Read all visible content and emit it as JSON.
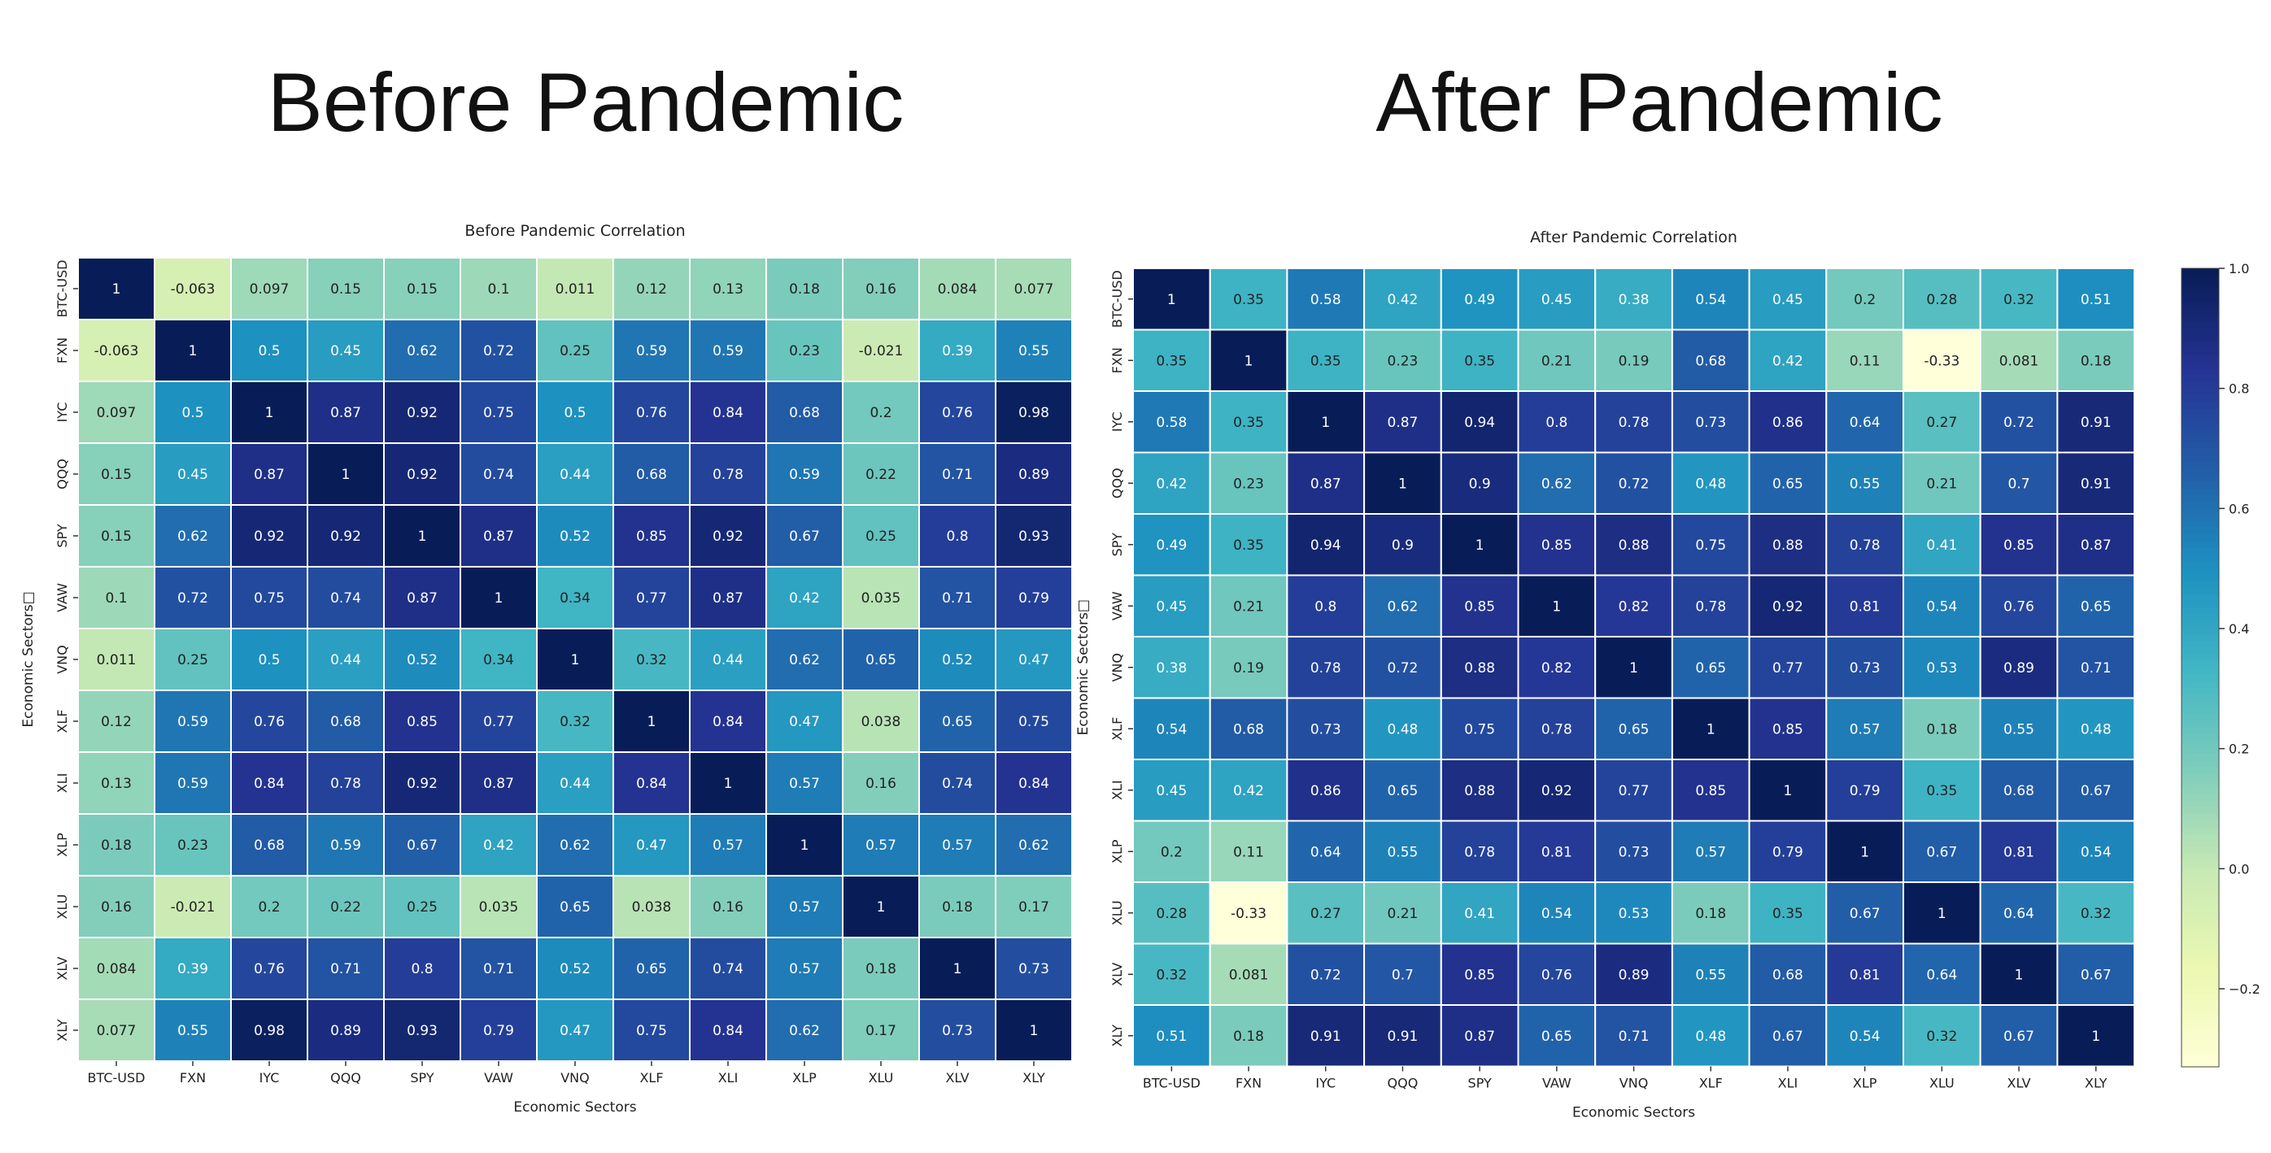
{
  "page": {
    "left_title": "Before Pandemic",
    "right_title": "After Pandemic"
  },
  "chart_data": [
    {
      "type": "heatmap",
      "title": "Before Pandemic Correlation",
      "xlabel": "Economic Sectors",
      "ylabel": "Economic Sectors□",
      "labels": [
        "BTC-USD",
        "FXN",
        "IYC",
        "QQQ",
        "SPY",
        "VAW",
        "VNQ",
        "XLF",
        "XLI",
        "XLP",
        "XLU",
        "XLV",
        "XLY"
      ],
      "matrix": [
        [
          "1",
          "-0.063",
          "0.097",
          "0.15",
          "0.15",
          "0.1",
          "0.011",
          "0.12",
          "0.13",
          "0.18",
          "0.16",
          "0.084",
          "0.077"
        ],
        [
          "-0.063",
          "1",
          "0.5",
          "0.45",
          "0.62",
          "0.72",
          "0.25",
          "0.59",
          "0.59",
          "0.23",
          "-0.021",
          "0.39",
          "0.55"
        ],
        [
          "0.097",
          "0.5",
          "1",
          "0.87",
          "0.92",
          "0.75",
          "0.5",
          "0.76",
          "0.84",
          "0.68",
          "0.2",
          "0.76",
          "0.98"
        ],
        [
          "0.15",
          "0.45",
          "0.87",
          "1",
          "0.92",
          "0.74",
          "0.44",
          "0.68",
          "0.78",
          "0.59",
          "0.22",
          "0.71",
          "0.89"
        ],
        [
          "0.15",
          "0.62",
          "0.92",
          "0.92",
          "1",
          "0.87",
          "0.52",
          "0.85",
          "0.92",
          "0.67",
          "0.25",
          "0.8",
          "0.93"
        ],
        [
          "0.1",
          "0.72",
          "0.75",
          "0.74",
          "0.87",
          "1",
          "0.34",
          "0.77",
          "0.87",
          "0.42",
          "0.035",
          "0.71",
          "0.79"
        ],
        [
          "0.011",
          "0.25",
          "0.5",
          "0.44",
          "0.52",
          "0.34",
          "1",
          "0.32",
          "0.44",
          "0.62",
          "0.65",
          "0.52",
          "0.47"
        ],
        [
          "0.12",
          "0.59",
          "0.76",
          "0.68",
          "0.85",
          "0.77",
          "0.32",
          "1",
          "0.84",
          "0.47",
          "0.038",
          "0.65",
          "0.75"
        ],
        [
          "0.13",
          "0.59",
          "0.84",
          "0.78",
          "0.92",
          "0.87",
          "0.44",
          "0.84",
          "1",
          "0.57",
          "0.16",
          "0.74",
          "0.84"
        ],
        [
          "0.18",
          "0.23",
          "0.68",
          "0.59",
          "0.67",
          "0.42",
          "0.62",
          "0.47",
          "0.57",
          "1",
          "0.57",
          "0.57",
          "0.62"
        ],
        [
          "0.16",
          "-0.021",
          "0.2",
          "0.22",
          "0.25",
          "0.035",
          "0.65",
          "0.038",
          "0.16",
          "0.57",
          "1",
          "0.18",
          "0.17"
        ],
        [
          "0.084",
          "0.39",
          "0.76",
          "0.71",
          "0.8",
          "0.71",
          "0.52",
          "0.65",
          "0.74",
          "0.57",
          "0.18",
          "1",
          "0.73"
        ],
        [
          "0.077",
          "0.55",
          "0.98",
          "0.89",
          "0.93",
          "0.79",
          "0.47",
          "0.75",
          "0.84",
          "0.62",
          "0.17",
          "0.73",
          "1"
        ]
      ],
      "vmin": -0.33,
      "vmax": 1.0
    },
    {
      "type": "heatmap",
      "title": "After Pandemic Correlation",
      "xlabel": "Economic Sectors",
      "ylabel": "Economic Sectors□",
      "labels": [
        "BTC-USD",
        "FXN",
        "IYC",
        "QQQ",
        "SPY",
        "VAW",
        "VNQ",
        "XLF",
        "XLI",
        "XLP",
        "XLU",
        "XLV",
        "XLY"
      ],
      "matrix": [
        [
          "1",
          "0.35",
          "0.58",
          "0.42",
          "0.49",
          "0.45",
          "0.38",
          "0.54",
          "0.45",
          "0.2",
          "0.28",
          "0.32",
          "0.51"
        ],
        [
          "0.35",
          "1",
          "0.35",
          "0.23",
          "0.35",
          "0.21",
          "0.19",
          "0.68",
          "0.42",
          "0.11",
          "-0.33",
          "0.081",
          "0.18"
        ],
        [
          "0.58",
          "0.35",
          "1",
          "0.87",
          "0.94",
          "0.8",
          "0.78",
          "0.73",
          "0.86",
          "0.64",
          "0.27",
          "0.72",
          "0.91"
        ],
        [
          "0.42",
          "0.23",
          "0.87",
          "1",
          "0.9",
          "0.62",
          "0.72",
          "0.48",
          "0.65",
          "0.55",
          "0.21",
          "0.7",
          "0.91"
        ],
        [
          "0.49",
          "0.35",
          "0.94",
          "0.9",
          "1",
          "0.85",
          "0.88",
          "0.75",
          "0.88",
          "0.78",
          "0.41",
          "0.85",
          "0.87"
        ],
        [
          "0.45",
          "0.21",
          "0.8",
          "0.62",
          "0.85",
          "1",
          "0.82",
          "0.78",
          "0.92",
          "0.81",
          "0.54",
          "0.76",
          "0.65"
        ],
        [
          "0.38",
          "0.19",
          "0.78",
          "0.72",
          "0.88",
          "0.82",
          "1",
          "0.65",
          "0.77",
          "0.73",
          "0.53",
          "0.89",
          "0.71"
        ],
        [
          "0.54",
          "0.68",
          "0.73",
          "0.48",
          "0.75",
          "0.78",
          "0.65",
          "1",
          "0.85",
          "0.57",
          "0.18",
          "0.55",
          "0.48"
        ],
        [
          "0.45",
          "0.42",
          "0.86",
          "0.65",
          "0.88",
          "0.92",
          "0.77",
          "0.85",
          "1",
          "0.79",
          "0.35",
          "0.68",
          "0.67"
        ],
        [
          "0.2",
          "0.11",
          "0.64",
          "0.55",
          "0.78",
          "0.81",
          "0.73",
          "0.57",
          "0.79",
          "1",
          "0.67",
          "0.81",
          "0.54"
        ],
        [
          "0.28",
          "-0.33",
          "0.27",
          "0.21",
          "0.41",
          "0.54",
          "0.53",
          "0.18",
          "0.35",
          "0.67",
          "1",
          "0.64",
          "0.32"
        ],
        [
          "0.32",
          "0.081",
          "0.72",
          "0.7",
          "0.85",
          "0.76",
          "0.89",
          "0.55",
          "0.68",
          "0.81",
          "0.64",
          "1",
          "0.67"
        ],
        [
          "0.51",
          "0.18",
          "0.91",
          "0.91",
          "0.87",
          "0.65",
          "0.71",
          "0.48",
          "0.67",
          "0.54",
          "0.32",
          "0.67",
          "1"
        ]
      ],
      "vmin": -0.33,
      "vmax": 1.0,
      "colorbar": {
        "ticks": [
          "1.0",
          "0.8",
          "0.6",
          "0.4",
          "0.2",
          "0.0",
          "−0.2"
        ],
        "tick_values": [
          1.0,
          0.8,
          0.6,
          0.4,
          0.2,
          0.0,
          -0.2
        ]
      }
    }
  ],
  "colors": {
    "scale": [
      "#ffffd9",
      "#edf8b1",
      "#c7e9b4",
      "#7fcdbb",
      "#41b6c4",
      "#1d91c0",
      "#225ea8",
      "#253494",
      "#081d58"
    ]
  }
}
